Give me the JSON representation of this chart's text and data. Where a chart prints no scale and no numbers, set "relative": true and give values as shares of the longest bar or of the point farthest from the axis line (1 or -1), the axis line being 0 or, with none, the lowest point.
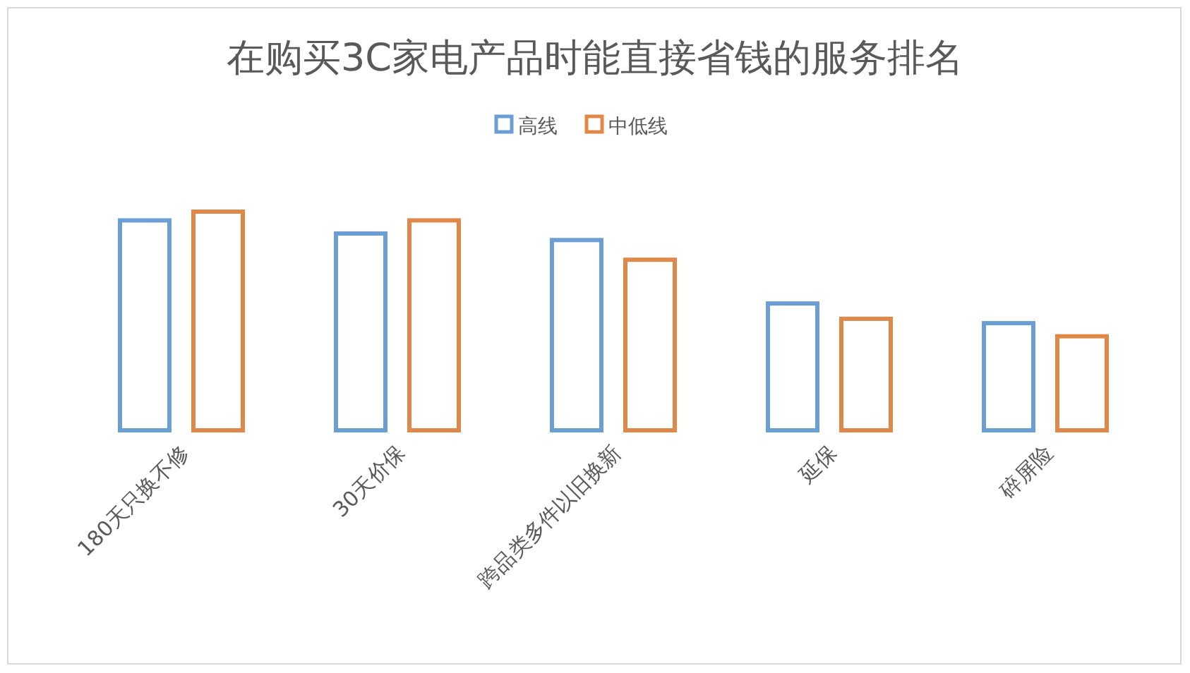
{
  "chart_data": {
    "type": "bar",
    "title": "在购买3C家电产品时能直接省钱的服务排名",
    "relative": true,
    "legend": "top",
    "categories": [
      "180天只换不修",
      "30天价保",
      "跨品类多件以旧换新",
      "延保",
      "碎屏险"
    ],
    "series": [
      {
        "name": "高线",
        "color": "#6a9ed4",
        "values": [
          0.96,
          0.9,
          0.87,
          0.58,
          0.49
        ]
      },
      {
        "name": "中低线",
        "color": "#e0884a",
        "values": [
          1,
          0.96,
          0.78,
          0.51,
          0.43
        ]
      }
    ]
  }
}
